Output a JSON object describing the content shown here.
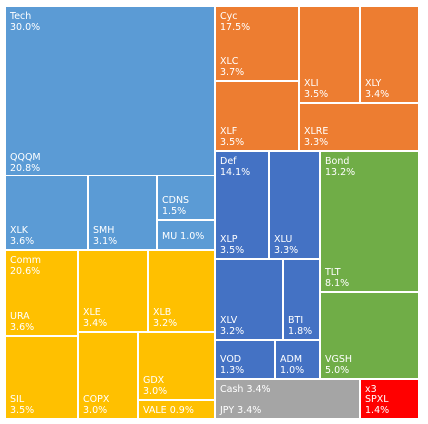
{
  "chart_data": {
    "type": "treemap",
    "colors": {
      "Tech": "#5b9bd5",
      "Cyc": "#ed7d31",
      "Def": "#4472c4",
      "Bond": "#70ad47",
      "Comm": "#ffc000",
      "Cash": "#a5a5a5",
      "x3": "#ff0000"
    },
    "groups": [
      {
        "name": "Tech",
        "pct": "30.0%"
      },
      {
        "name": "Cyc",
        "pct": "17.5%"
      },
      {
        "name": "Def",
        "pct": "14.1%"
      },
      {
        "name": "Bond",
        "pct": "13.2%"
      },
      {
        "name": "Comm",
        "pct": "20.6%"
      },
      {
        "name": "Cash",
        "pct": "3.4%"
      },
      {
        "name": "x3",
        "pct": ""
      }
    ],
    "cells": [
      {
        "id": "qqqm",
        "group": "Tech",
        "group_label": "Tech",
        "group_pct": "30.0%",
        "label": "QQQM",
        "pct": "20.8%",
        "value": 20.8,
        "inline": false
      },
      {
        "id": "xlk",
        "group": "Tech",
        "label": "XLK",
        "pct": "3.6%",
        "value": 3.6,
        "inline": false
      },
      {
        "id": "smh",
        "group": "Tech",
        "label": "SMH",
        "pct": "3.1%",
        "value": 3.1,
        "inline": false
      },
      {
        "id": "cdns",
        "group": "Tech",
        "label": "CDNS",
        "pct": "1.5%",
        "value": 1.5,
        "inline": false
      },
      {
        "id": "mu",
        "group": "Tech",
        "label": "MU",
        "pct": "1.0%",
        "value": 1.0,
        "inline": true
      },
      {
        "id": "xlc",
        "group": "Cyc",
        "group_label": "Cyc",
        "group_pct": "17.5%",
        "label": "XLC",
        "pct": "3.7%",
        "value": 3.7,
        "inline": false
      },
      {
        "id": "xli",
        "group": "Cyc",
        "label": "XLI",
        "pct": "3.5%",
        "value": 3.5,
        "inline": false
      },
      {
        "id": "xly",
        "group": "Cyc",
        "label": "XLY",
        "pct": "3.4%",
        "value": 3.4,
        "inline": false
      },
      {
        "id": "xlf",
        "group": "Cyc",
        "label": "XLF",
        "pct": "3.5%",
        "value": 3.5,
        "inline": false
      },
      {
        "id": "xlre",
        "group": "Cyc",
        "label": "XLRE",
        "pct": "3.3%",
        "value": 3.3,
        "inline": false
      },
      {
        "id": "xlp",
        "group": "Def",
        "group_label": "Def",
        "group_pct": "14.1%",
        "label": "XLP",
        "pct": "3.5%",
        "value": 3.5,
        "inline": false
      },
      {
        "id": "xlu",
        "group": "Def",
        "label": "XLU",
        "pct": "3.3%",
        "value": 3.3,
        "inline": false
      },
      {
        "id": "xlv",
        "group": "Def",
        "label": "XLV",
        "pct": "3.2%",
        "value": 3.2,
        "inline": false
      },
      {
        "id": "bti",
        "group": "Def",
        "label": "BTI",
        "pct": "1.8%",
        "value": 1.8,
        "inline": false
      },
      {
        "id": "vod",
        "group": "Def",
        "label": "VOD",
        "pct": "1.3%",
        "value": 1.3,
        "inline": false
      },
      {
        "id": "adm",
        "group": "Def",
        "label": "ADM",
        "pct": "1.0%",
        "value": 1.0,
        "inline": false
      },
      {
        "id": "tlt",
        "group": "Bond",
        "group_label": "Bond",
        "group_pct": "13.2%",
        "label": "TLT",
        "pct": "8.1%",
        "value": 8.1,
        "inline": false
      },
      {
        "id": "vgsh",
        "group": "Bond",
        "label": "VGSH",
        "pct": "5.0%",
        "value": 5.0,
        "inline": false
      },
      {
        "id": "ura",
        "group": "Comm",
        "group_label": "Comm",
        "group_pct": "20.6%",
        "label": "URA",
        "pct": "3.6%",
        "value": 3.6,
        "inline": false
      },
      {
        "id": "xle",
        "group": "Comm",
        "label": "XLE",
        "pct": "3.4%",
        "value": 3.4,
        "inline": false
      },
      {
        "id": "xlb",
        "group": "Comm",
        "label": "XLB",
        "pct": "3.2%",
        "value": 3.2,
        "inline": false
      },
      {
        "id": "sil",
        "group": "Comm",
        "label": "SIL",
        "pct": "3.5%",
        "value": 3.5,
        "inline": false
      },
      {
        "id": "copx",
        "group": "Comm",
        "label": "COPX",
        "pct": "3.0%",
        "value": 3.0,
        "inline": false
      },
      {
        "id": "gdx",
        "group": "Comm",
        "label": "GDX",
        "pct": "3.0%",
        "value": 3.0,
        "inline": false
      },
      {
        "id": "vale",
        "group": "Comm",
        "label": "VALE",
        "pct": "0.9%",
        "value": 0.9,
        "inline": true
      },
      {
        "id": "jpy",
        "group": "Cash",
        "group_label": "Cash",
        "group_pct": "3.4%",
        "label": "JPY",
        "pct": "3.4%",
        "value": 3.4,
        "inline": true
      },
      {
        "id": "spxl",
        "group": "x3",
        "group_label": "x3",
        "group_pct": "",
        "label": "SPXL",
        "pct": "1.4%",
        "value": 1.4,
        "inline": false
      }
    ]
  }
}
